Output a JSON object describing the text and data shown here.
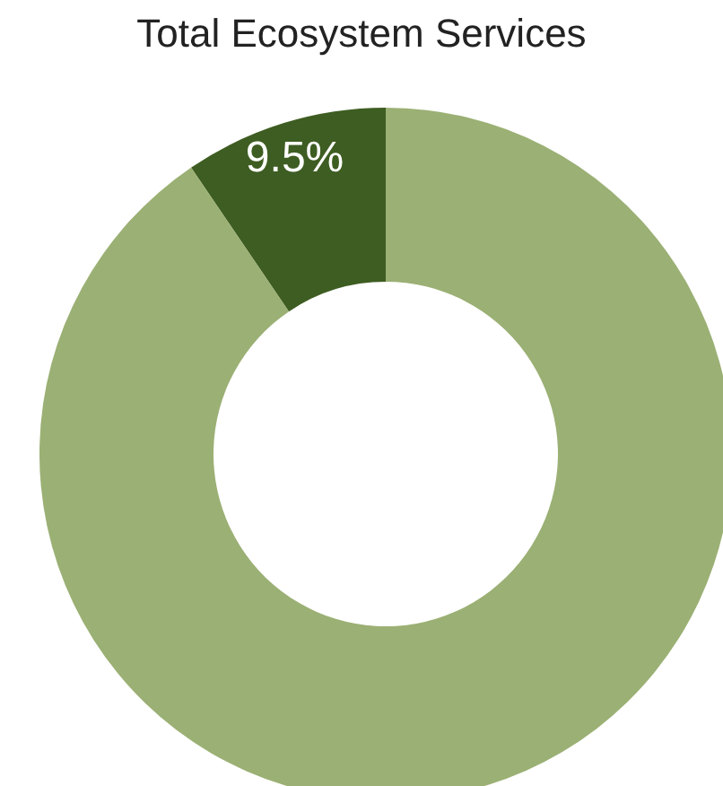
{
  "chart_data": {
    "type": "donut",
    "title": "Total Ecosystem Services",
    "categories": [
      null,
      null
    ],
    "values": [
      9.5,
      90.5
    ],
    "colors": [
      "#3e5d22",
      "#9bb074"
    ],
    "value_labels": [
      "9.5%",
      null
    ],
    "legend": false
  }
}
